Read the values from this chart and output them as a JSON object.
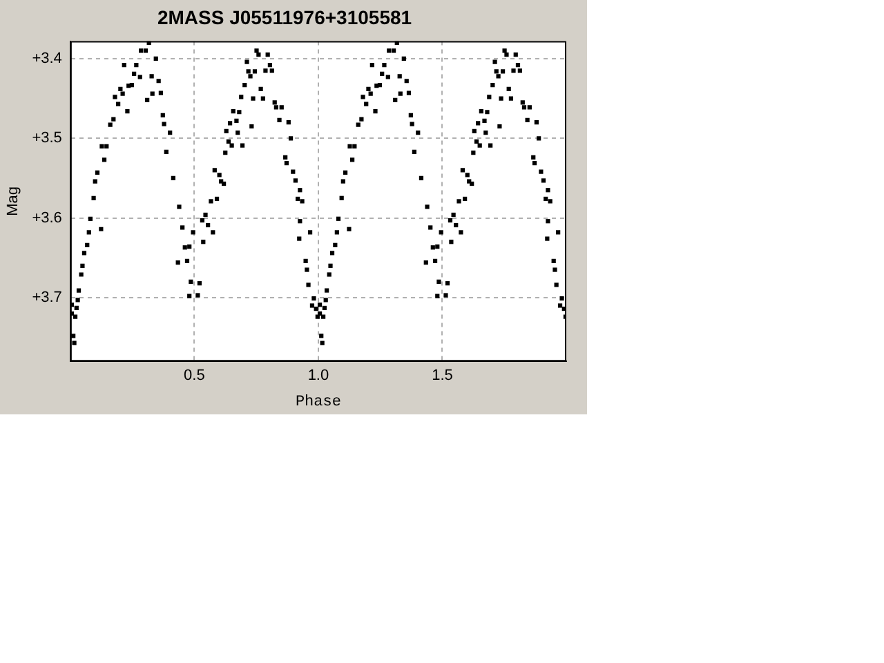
{
  "chart_data": {
    "type": "scatter",
    "title": "2MASS J05511976+3105581",
    "xlabel": "Phase",
    "ylabel": "Mag",
    "xlim": [
      0,
      2
    ],
    "xticks": [
      0.5,
      {
        "value": 1,
        "label": "1.0"
      },
      1.5
    ],
    "ylim": [
      3.78,
      3.378
    ],
    "yticks": [
      {
        "value": 3.4,
        "label": "+3.4"
      },
      {
        "value": 3.5,
        "label": "+3.5"
      },
      {
        "value": 3.6,
        "label": "+3.6"
      },
      {
        "value": 3.7,
        "label": "+3.7"
      }
    ],
    "grid": true,
    "marker": "square",
    "series": [
      {
        "color": "#000000",
        "x": [
          0.006,
          0.006,
          0.012,
          0.016,
          0.02,
          0.025,
          0.03,
          0.034,
          0.044,
          0.049,
          0.056,
          0.068,
          0.075,
          0.081,
          0.094,
          0.1,
          0.109,
          0.124,
          0.127,
          0.137,
          0.146,
          0.161,
          0.174,
          0.18,
          0.193,
          0.202,
          0.211,
          0.217,
          0.23,
          0.235,
          0.248,
          0.257,
          0.266,
          0.281,
          0.285,
          0.304,
          0.31,
          0.317,
          0.328,
          0.331,
          0.345,
          0.356,
          0.365,
          0.373,
          0.378,
          0.387,
          0.402,
          0.415,
          0.434,
          0.439,
          0.452,
          0.462,
          0.471,
          0.48,
          0.486,
          0.48,
          0.495,
          0.514,
          0.521,
          0.532,
          0.536,
          0.545,
          0.555,
          0.567,
          0.575,
          0.582,
          0.591,
          0.601,
          0.608,
          0.619,
          0.625,
          0.629,
          0.638,
          0.644,
          0.651,
          0.657,
          0.67,
          0.675,
          0.681,
          0.694,
          0.689,
          0.703,
          0.712,
          0.718,
          0.726,
          0.731,
          0.737,
          0.744,
          0.751,
          0.759,
          0.768,
          0.777,
          0.787,
          0.796,
          0.805,
          0.813,
          0.824,
          0.83,
          0.843,
          0.852,
          0.88,
          0.867,
          0.872,
          0.889,
          0.898,
          0.908,
          0.917,
          0.926,
          0.926,
          0.935,
          0.923,
          0.949,
          0.954,
          0.96,
          0.967,
          0.975,
          0.982,
          0.991,
          0.997,
          1.006,
          1.006,
          1.012,
          1.016,
          1.02,
          1.025,
          1.03,
          1.034,
          1.044,
          1.049,
          1.056,
          1.068,
          1.075,
          1.081,
          1.094,
          1.1,
          1.109,
          1.124,
          1.127,
          1.137,
          1.146,
          1.161,
          1.174,
          1.18,
          1.193,
          1.202,
          1.211,
          1.217,
          1.23,
          1.235,
          1.248,
          1.257,
          1.266,
          1.281,
          1.285,
          1.304,
          1.31,
          1.317,
          1.328,
          1.331,
          1.345,
          1.356,
          1.365,
          1.373,
          1.378,
          1.387,
          1.402,
          1.415,
          1.434,
          1.439,
          1.452,
          1.462,
          1.471,
          1.48,
          1.486,
          1.48,
          1.495,
          1.514,
          1.521,
          1.532,
          1.536,
          1.545,
          1.555,
          1.567,
          1.575,
          1.582,
          1.591,
          1.601,
          1.608,
          1.619,
          1.625,
          1.629,
          1.638,
          1.644,
          1.651,
          1.657,
          1.67,
          1.675,
          1.681,
          1.694,
          1.689,
          1.703,
          1.712,
          1.718,
          1.726,
          1.731,
          1.737,
          1.744,
          1.751,
          1.759,
          1.768,
          1.777,
          1.787,
          1.796,
          1.805,
          1.813,
          1.824,
          1.83,
          1.843,
          1.852,
          1.88,
          1.867,
          1.872,
          1.889,
          1.898,
          1.908,
          1.917,
          1.926,
          1.926,
          1.935,
          1.923,
          1.949,
          1.954,
          1.96,
          1.967,
          1.975,
          1.982,
          1.991,
          1.997
        ],
        "values": [
          3.709,
          3.72,
          3.748,
          3.757,
          3.724,
          3.713,
          3.703,
          3.691,
          3.671,
          3.66,
          3.644,
          3.634,
          3.618,
          3.601,
          3.575,
          3.554,
          3.543,
          3.614,
          3.51,
          3.527,
          3.51,
          3.483,
          3.476,
          3.448,
          3.457,
          3.438,
          3.444,
          3.408,
          3.466,
          3.434,
          3.433,
          3.419,
          3.408,
          3.423,
          3.39,
          3.39,
          3.452,
          3.38,
          3.422,
          3.444,
          3.4,
          3.428,
          3.443,
          3.471,
          3.482,
          3.517,
          3.493,
          3.55,
          3.656,
          3.586,
          3.612,
          3.637,
          3.654,
          3.636,
          3.68,
          3.698,
          3.618,
          3.697,
          3.682,
          3.603,
          3.63,
          3.596,
          3.609,
          3.579,
          3.618,
          3.54,
          3.576,
          3.546,
          3.554,
          3.557,
          3.518,
          3.491,
          3.504,
          3.481,
          3.509,
          3.466,
          3.478,
          3.493,
          3.467,
          3.509,
          3.448,
          3.433,
          3.404,
          3.416,
          3.422,
          3.485,
          3.45,
          3.416,
          3.39,
          3.395,
          3.438,
          3.45,
          3.415,
          3.395,
          3.408,
          3.415,
          3.455,
          3.461,
          3.477,
          3.461,
          3.48,
          3.524,
          3.531,
          3.5,
          3.542,
          3.553,
          3.576,
          3.565,
          3.604,
          3.579,
          3.626,
          3.654,
          3.665,
          3.684,
          3.618,
          3.71,
          3.701,
          3.714,
          3.724,
          3.709,
          3.72,
          3.748,
          3.757,
          3.724,
          3.713,
          3.703,
          3.691,
          3.671,
          3.66,
          3.644,
          3.634,
          3.618,
          3.601,
          3.575,
          3.554,
          3.543,
          3.614,
          3.51,
          3.527,
          3.51,
          3.483,
          3.476,
          3.448,
          3.457,
          3.438,
          3.444,
          3.408,
          3.466,
          3.434,
          3.433,
          3.419,
          3.408,
          3.423,
          3.39,
          3.39,
          3.452,
          3.38,
          3.422,
          3.444,
          3.4,
          3.428,
          3.443,
          3.471,
          3.482,
          3.517,
          3.493,
          3.55,
          3.656,
          3.586,
          3.612,
          3.637,
          3.654,
          3.636,
          3.68,
          3.698,
          3.618,
          3.697,
          3.682,
          3.603,
          3.63,
          3.596,
          3.609,
          3.579,
          3.618,
          3.54,
          3.576,
          3.546,
          3.554,
          3.557,
          3.518,
          3.491,
          3.504,
          3.481,
          3.509,
          3.466,
          3.478,
          3.493,
          3.467,
          3.509,
          3.448,
          3.433,
          3.404,
          3.416,
          3.422,
          3.485,
          3.45,
          3.416,
          3.39,
          3.395,
          3.438,
          3.45,
          3.415,
          3.395,
          3.408,
          3.415,
          3.455,
          3.461,
          3.477,
          3.461,
          3.48,
          3.524,
          3.531,
          3.5,
          3.542,
          3.553,
          3.576,
          3.565,
          3.604,
          3.579,
          3.626,
          3.654,
          3.665,
          3.684,
          3.618,
          3.71,
          3.701,
          3.714,
          3.724
        ]
      }
    ]
  }
}
